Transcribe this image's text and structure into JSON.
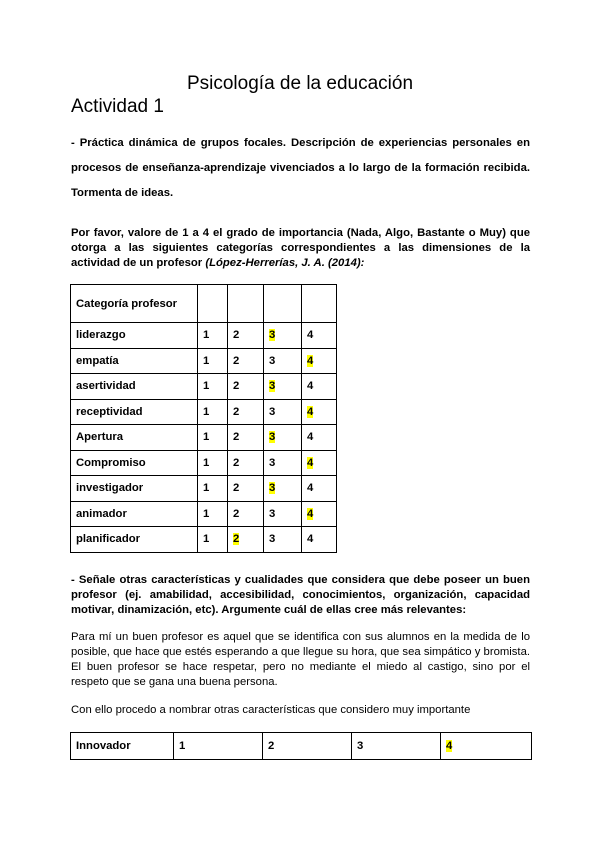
{
  "title": "Psicología de la educación",
  "subtitle": "Actividad 1",
  "intro": " - Práctica dinámica de grupos focales. Descripción de experiencias personales en procesos de enseñanza-aprendizaje vivenciados a lo largo de la formación recibida. Tormenta de ideas.",
  "question1": {
    "text": "Por favor, valore de 1 a 4 el grado de importancia (Nada, Algo, Bastante o Muy) que otorga a las siguientes categorías correspondientes a las dimensiones de la actividad de un profesor ",
    "citation": "(López-Herrerías, J. A. (2014):"
  },
  "table1": {
    "header": "Categoría profesor",
    "highlight_color": "#ffff00",
    "rows": [
      {
        "label": "liderazgo",
        "values": [
          "1",
          "2",
          "3",
          "4"
        ],
        "selected": 3
      },
      {
        "label": "empatía",
        "values": [
          "1",
          "2",
          "3",
          "4"
        ],
        "selected": 4
      },
      {
        "label": "asertividad",
        "values": [
          "1",
          "2",
          "3",
          "4"
        ],
        "selected": 3
      },
      {
        "label": "receptividad",
        "values": [
          "1",
          "2",
          "3",
          "4"
        ],
        "selected": 4
      },
      {
        "label": "Apertura",
        "values": [
          "1",
          "2",
          "3",
          "4"
        ],
        "selected": 3
      },
      {
        "label": "Compromiso",
        "values": [
          "1",
          "2",
          "3",
          "4"
        ],
        "selected": 4
      },
      {
        "label": "investigador",
        "values": [
          "1",
          "2",
          "3",
          "4"
        ],
        "selected": 3
      },
      {
        "label": "animador",
        "values": [
          "1",
          "2",
          "3",
          "4"
        ],
        "selected": 4
      },
      {
        "label": "planificador",
        "values": [
          "1",
          "2",
          "3",
          "4"
        ],
        "selected": 2
      }
    ]
  },
  "question2": "- Señale otras características y cualidades que considera que debe poseer un buen profesor (ej. amabilidad, accesibilidad, conocimientos, organización, capacidad motivar, dinamización, etc). Argumente cuál de ellas cree más relevantes:",
  "answer": "Para mí un buen profesor es aquel que se identifica con sus alumnos en la medida de lo posible, que hace que estés esperando a que llegue su hora, que sea simpático y bromista. El buen profesor se hace respetar, pero no mediante el miedo al castigo, sino por el respeto que se gana una buena persona.",
  "answer2": "Con ello procedo a nombrar otras características que considero muy importante",
  "table2": {
    "rows": [
      {
        "label": "Innovador",
        "values": [
          "1",
          "2",
          "3",
          "4"
        ],
        "selected": 4
      }
    ]
  }
}
